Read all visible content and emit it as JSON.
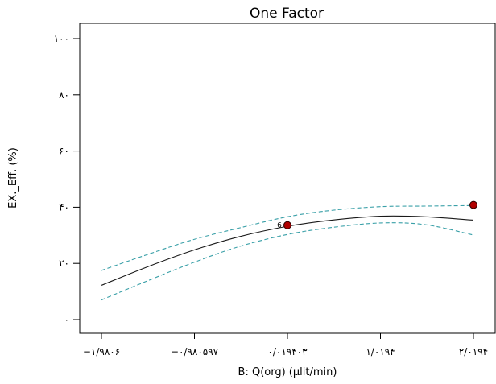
{
  "chart_data": {
    "type": "line",
    "title": "One Factor",
    "xlabel": "B: Q(org) (µlit/min)",
    "ylabel": "EX._Eff. (%)",
    "xlim": [
      -1.9806,
      2.0194
    ],
    "ylim": [
      0,
      100
    ],
    "x_ticks": [
      -1.9806,
      -0.980597,
      0.019403,
      1.0194,
      2.0194
    ],
    "x_tick_labels": [
      "−۱/۹۸۰۶",
      "−۰/۹۸۰۵۹۷",
      "۰/۰۱۹۴۰۳",
      "۱/۰۱۹۴",
      "۲/۰۱۹۴"
    ],
    "y_ticks": [
      0,
      20,
      40,
      60,
      80,
      100
    ],
    "y_tick_labels": [
      "۰",
      "۲۰",
      "۴۰",
      "۶۰",
      "۸۰",
      "۱۰۰"
    ],
    "grid": false,
    "series": [
      {
        "role": "prediction",
        "color": "#1a1a1a",
        "style": "solid",
        "x": [
          -1.9806,
          -1.5,
          -1.0,
          -0.5,
          0.019403,
          0.5,
          1.0194,
          1.5,
          2.0194
        ],
        "y": [
          12.2,
          18.6,
          24.6,
          29.5,
          33.2,
          35.4,
          36.8,
          36.6,
          35.4
        ]
      },
      {
        "role": "upper-confidence-band",
        "color": "#3aa0a8",
        "style": "dashed",
        "x": [
          -1.9806,
          -1.5,
          -1.0,
          -0.5,
          0.019403,
          0.5,
          1.0194,
          1.5,
          2.0194
        ],
        "y": [
          17.5,
          23.0,
          28.4,
          32.6,
          36.6,
          38.9,
          40.2,
          40.4,
          40.6
        ]
      },
      {
        "role": "lower-confidence-band",
        "color": "#3aa0a8",
        "style": "dashed",
        "x": [
          -1.9806,
          -1.5,
          -1.0,
          -0.5,
          0.019403,
          0.5,
          1.0194,
          1.5,
          2.0194
        ],
        "y": [
          7.0,
          13.6,
          20.2,
          26.0,
          30.3,
          32.8,
          34.4,
          33.8,
          30.1
        ]
      }
    ],
    "points": [
      {
        "x": 0.019403,
        "y": 33.6,
        "label": "6",
        "color": "#b00000"
      },
      {
        "x": 2.0194,
        "y": 40.8,
        "label": "",
        "color": "#b00000"
      }
    ]
  }
}
